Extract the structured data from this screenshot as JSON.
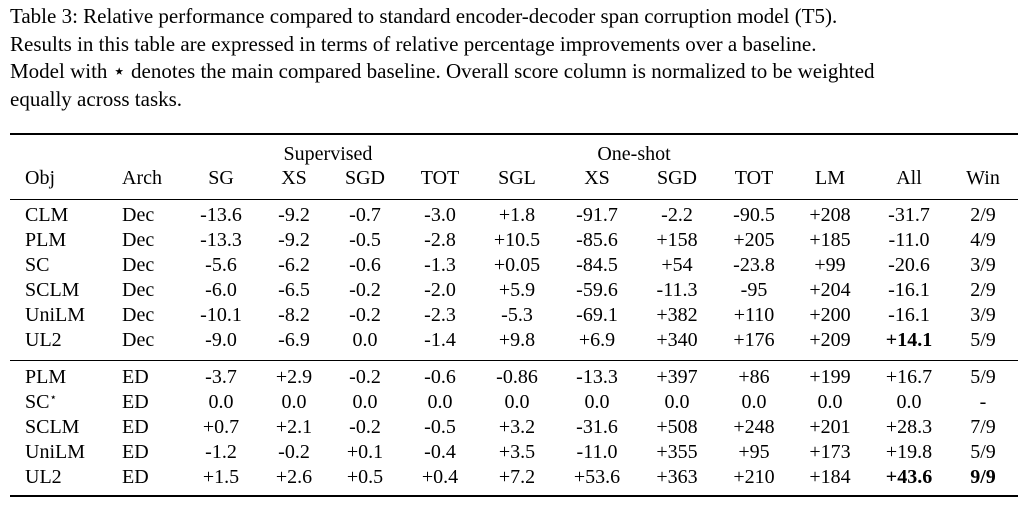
{
  "caption": {
    "lines": [
      "Table 3: Relative performance compared to standard encoder-decoder span corruption model (T5).",
      "Results in this table are expressed in terms of relative percentage improvements over a baseline.",
      "Model with ⋆ denotes the main compared baseline. Overall score column is normalized to be weighted",
      "equally across tasks."
    ]
  },
  "table": {
    "group_headers": {
      "supervised": "Supervised",
      "one_shot": "One-shot"
    },
    "columns": [
      "Obj",
      "Arch",
      "SG",
      "XS",
      "SGD",
      "TOT",
      "SGL",
      "XS",
      "SGD",
      "TOT",
      "LM",
      "All",
      "Win"
    ],
    "decoder_rows": [
      {
        "obj": "CLM",
        "arch": "Dec",
        "values": [
          "-13.6",
          "-9.2",
          "-0.7",
          "-3.0",
          "+1.8",
          "-91.7",
          "-2.2",
          "-90.5",
          "+208",
          "-31.7",
          "2/9"
        ]
      },
      {
        "obj": "PLM",
        "arch": "Dec",
        "values": [
          "-13.3",
          "-9.2",
          "-0.5",
          "-2.8",
          "+10.5",
          "-85.6",
          "+158",
          "+205",
          "+185",
          "-11.0",
          "4/9"
        ]
      },
      {
        "obj": "SC",
        "arch": "Dec",
        "values": [
          "-5.6",
          "-6.2",
          "-0.6",
          "-1.3",
          "+0.05",
          "-84.5",
          "+54",
          "-23.8",
          "+99",
          "-20.6",
          "3/9"
        ]
      },
      {
        "obj": "SCLM",
        "arch": "Dec",
        "values": [
          "-6.0",
          "-6.5",
          "-0.2",
          "-2.0",
          "+5.9",
          "-59.6",
          "-11.3",
          "-95",
          "+204",
          "-16.1",
          "2/9"
        ]
      },
      {
        "obj": "UniLM",
        "arch": "Dec",
        "values": [
          "-10.1",
          "-8.2",
          "-0.2",
          "-2.3",
          "-5.3",
          "-69.1",
          "+382",
          "+110",
          "+200",
          "-16.1",
          "3/9"
        ]
      },
      {
        "obj": "UL2",
        "arch": "Dec",
        "values": [
          "-9.0",
          "-6.9",
          "0.0",
          "-1.4",
          "+9.8",
          "+6.9",
          "+340",
          "+176",
          "+209",
          "+14.1",
          "5/9"
        ]
      }
    ],
    "encdec_rows": [
      {
        "obj": "PLM",
        "arch": "ED",
        "values": [
          "-3.7",
          "+2.9",
          "-0.2",
          "-0.6",
          "-0.86",
          "-13.3",
          "+397",
          "+86",
          "+199",
          "+16.7",
          "5/9"
        ]
      },
      {
        "obj": "SC",
        "star": "⋆",
        "arch": "ED",
        "values": [
          "0.0",
          "0.0",
          "0.0",
          "0.0",
          "0.0",
          "0.0",
          "0.0",
          "0.0",
          "0.0",
          "0.0",
          "-"
        ]
      },
      {
        "obj": "SCLM",
        "arch": "ED",
        "values": [
          "+0.7",
          "+2.1",
          "-0.2",
          "-0.5",
          "+3.2",
          "-31.6",
          "+508",
          "+248",
          "+201",
          "+28.3",
          "7/9"
        ]
      },
      {
        "obj": "UniLM",
        "arch": "ED",
        "values": [
          "-1.2",
          "-0.2",
          "+0.1",
          "-0.4",
          "+3.5",
          "-11.0",
          "+355",
          "+95",
          "+173",
          "+19.8",
          "5/9"
        ]
      },
      {
        "obj": "UL2",
        "arch": "ED",
        "values": [
          "+1.5",
          "+2.6",
          "+0.5",
          "+0.4",
          "+7.2",
          "+53.6",
          "+363",
          "+210",
          "+184",
          "+43.6",
          "9/9"
        ]
      }
    ]
  }
}
